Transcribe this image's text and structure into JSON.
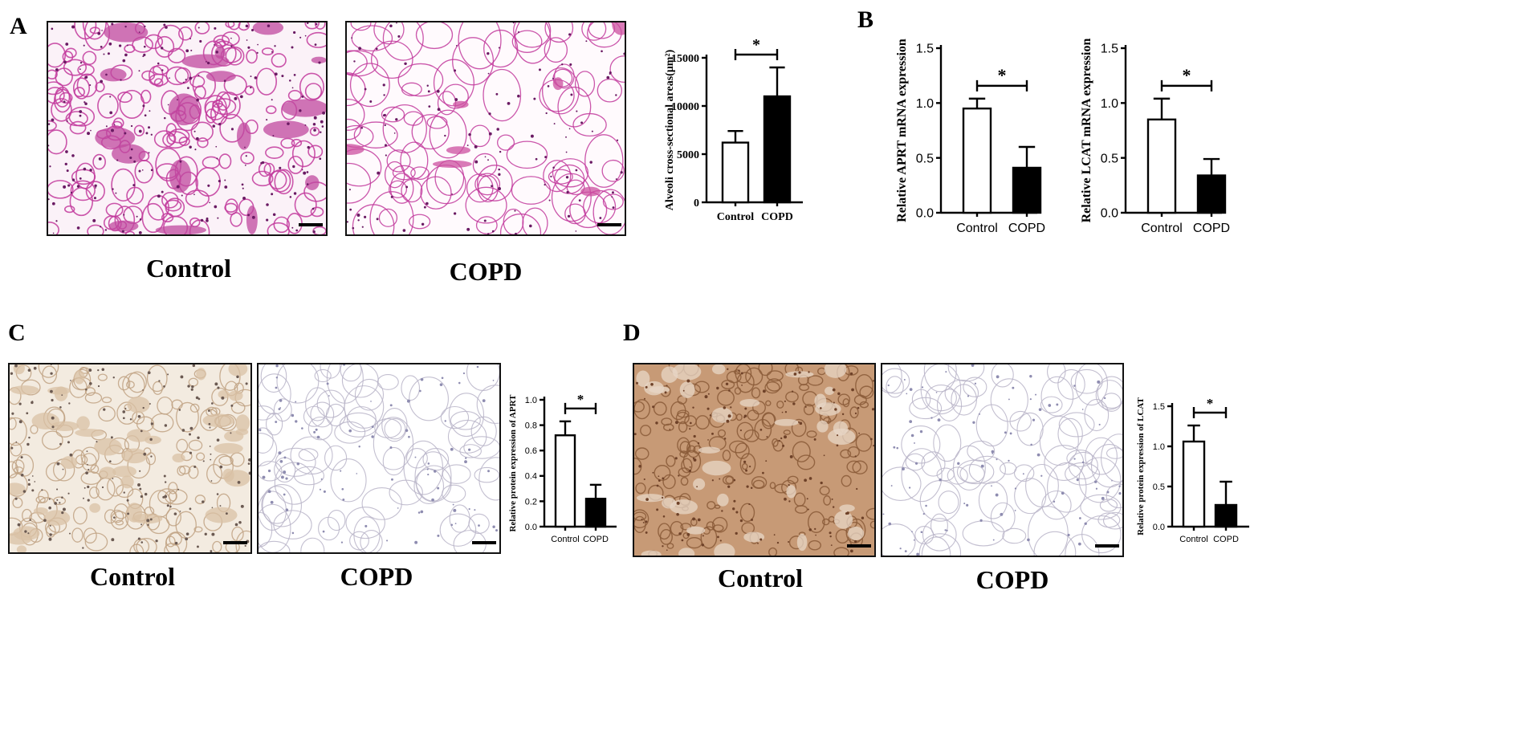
{
  "panels": {
    "A": {
      "label": "A",
      "captions": [
        "Control",
        "COPD"
      ]
    },
    "B": {
      "label": "B"
    },
    "C": {
      "label": "C",
      "captions": [
        "Control",
        "COPD"
      ]
    },
    "D": {
      "label": "D",
      "captions": [
        "Control",
        "COPD"
      ]
    }
  },
  "colors": {
    "he_stain": "#c23a9c",
    "he_dark": "#6a1a63",
    "dab_light": "#d9c2a6",
    "dab_heavy": "#a5714a",
    "hema": "#8e8cb0",
    "control_bar": "#ffffff",
    "copd_bar": "#000000"
  },
  "chart_data": [
    {
      "id": "alveoli",
      "type": "bar",
      "ylabel": "Alveoli cross-sectional areas(μm²)",
      "categories": [
        "Control",
        "COPD"
      ],
      "values": [
        6200,
        11000
      ],
      "errors": [
        1200,
        3000
      ],
      "ylim": [
        0,
        15000
      ],
      "yticks": [
        "0",
        "5000",
        "10000",
        "15000"
      ],
      "significance": "*"
    },
    {
      "id": "aprt_mrna",
      "type": "bar",
      "ylabel": "Relative APRT mRNA expression",
      "categories": [
        "Control",
        "COPD"
      ],
      "values": [
        0.95,
        0.41
      ],
      "errors": [
        0.09,
        0.19
      ],
      "ylim": [
        0,
        1.5
      ],
      "yticks": [
        "0.0",
        "0.5",
        "1.0",
        "1.5"
      ],
      "significance": "*"
    },
    {
      "id": "lcat_mrna",
      "type": "bar",
      "ylabel": "Relative LCAT mRNA expression",
      "categories": [
        "Control",
        "COPD"
      ],
      "values": [
        0.85,
        0.34
      ],
      "errors": [
        0.19,
        0.15
      ],
      "ylim": [
        0,
        1.5
      ],
      "yticks": [
        "0.0",
        "0.5",
        "1.0",
        "1.5"
      ],
      "significance": "*"
    },
    {
      "id": "aprt_protein",
      "type": "bar",
      "ylabel": "Relative  protein expression of APRT",
      "categories": [
        "Control",
        "COPD"
      ],
      "values": [
        0.72,
        0.22
      ],
      "errors": [
        0.11,
        0.11
      ],
      "ylim": [
        0,
        1.0
      ],
      "yticks": [
        "0.0",
        "0.2",
        "0.4",
        "0.6",
        "0.8",
        "1.0"
      ],
      "significance": "*"
    },
    {
      "id": "lcat_protein",
      "type": "bar",
      "ylabel": "Relative  protein expression of LCAT",
      "categories": [
        "Control",
        "COPD"
      ],
      "values": [
        1.06,
        0.27
      ],
      "errors": [
        0.2,
        0.29
      ],
      "ylim": [
        0,
        1.5
      ],
      "yticks": [
        "0.0",
        "0.5",
        "1.0",
        "1.5"
      ],
      "significance": "*"
    }
  ]
}
